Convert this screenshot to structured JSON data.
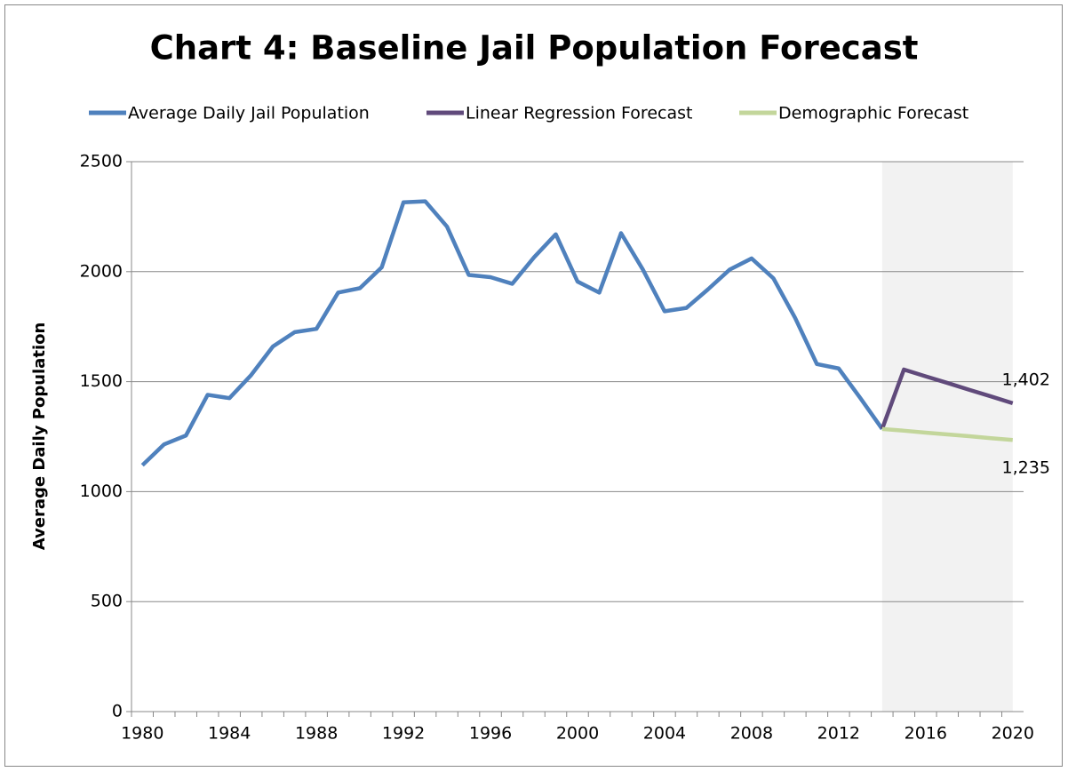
{
  "chart_data": {
    "type": "line",
    "title": "Chart 4: Baseline Jail Population Forecast",
    "ylabel": "Average Daily Population",
    "x": [
      1980,
      1981,
      1982,
      1983,
      1984,
      1985,
      1986,
      1987,
      1988,
      1989,
      1990,
      1991,
      1992,
      1993,
      1994,
      1995,
      1996,
      1997,
      1998,
      1999,
      2000,
      2001,
      2002,
      2003,
      2004,
      2005,
      2006,
      2007,
      2008,
      2009,
      2010,
      2011,
      2012,
      2013,
      2014,
      2015,
      2016,
      2017,
      2018,
      2019,
      2020
    ],
    "series": [
      {
        "name": "Average Daily Jail Population",
        "color": "#4f81bd",
        "values": [
          1120,
          1215,
          1255,
          1440,
          1425,
          1530,
          1660,
          1725,
          1740,
          1905,
          1925,
          2020,
          2315,
          2320,
          2205,
          1985,
          1975,
          1945,
          2065,
          2170,
          1955,
          1905,
          2175,
          2010,
          1820,
          1835,
          1920,
          2010,
          2060,
          1970,
          1790,
          1580,
          1560,
          1425,
          1285,
          null,
          null,
          null,
          null,
          null,
          null
        ]
      },
      {
        "name": "Linear Regression Forecast",
        "color": "#604a7b",
        "values": [
          null,
          null,
          null,
          null,
          null,
          null,
          null,
          null,
          null,
          null,
          null,
          null,
          null,
          null,
          null,
          null,
          null,
          null,
          null,
          null,
          null,
          null,
          null,
          null,
          null,
          null,
          null,
          null,
          null,
          null,
          null,
          null,
          null,
          null,
          1285,
          1555,
          1524,
          1494,
          1463,
          1433,
          1402
        ],
        "value_labels": [
          null,
          null,
          null,
          null,
          null,
          null,
          null,
          null,
          null,
          null,
          null,
          null,
          null,
          null,
          null,
          null,
          null,
          null,
          null,
          null,
          null,
          null,
          null,
          null,
          null,
          null,
          null,
          null,
          null,
          null,
          null,
          null,
          null,
          null,
          null,
          null,
          null,
          null,
          null,
          null,
          "1,402"
        ]
      },
      {
        "name": "Demographic Forecast",
        "color": "#c3d69b",
        "values": [
          null,
          null,
          null,
          null,
          null,
          null,
          null,
          null,
          null,
          null,
          null,
          null,
          null,
          null,
          null,
          null,
          null,
          null,
          null,
          null,
          null,
          null,
          null,
          null,
          null,
          null,
          null,
          null,
          null,
          null,
          null,
          null,
          null,
          null,
          1285,
          1277,
          1268,
          1260,
          1252,
          1243,
          1235
        ],
        "value_labels": [
          null,
          null,
          null,
          null,
          null,
          null,
          null,
          null,
          null,
          null,
          null,
          null,
          null,
          null,
          null,
          null,
          null,
          null,
          null,
          null,
          null,
          null,
          null,
          null,
          null,
          null,
          null,
          null,
          null,
          null,
          null,
          null,
          null,
          null,
          null,
          null,
          null,
          null,
          null,
          null,
          "1,235"
        ]
      }
    ],
    "shaded_x": [
      2014,
      2020
    ],
    "xlim": [
      1979.5,
      2020.5
    ],
    "xticks": [
      1980,
      1984,
      1988,
      1992,
      1996,
      2000,
      2004,
      2008,
      2012,
      2016,
      2020
    ],
    "ylim": [
      0,
      2500
    ],
    "yticks": [
      0,
      500,
      1000,
      1500,
      2000,
      2500
    ],
    "grid": true,
    "legend": "top"
  }
}
